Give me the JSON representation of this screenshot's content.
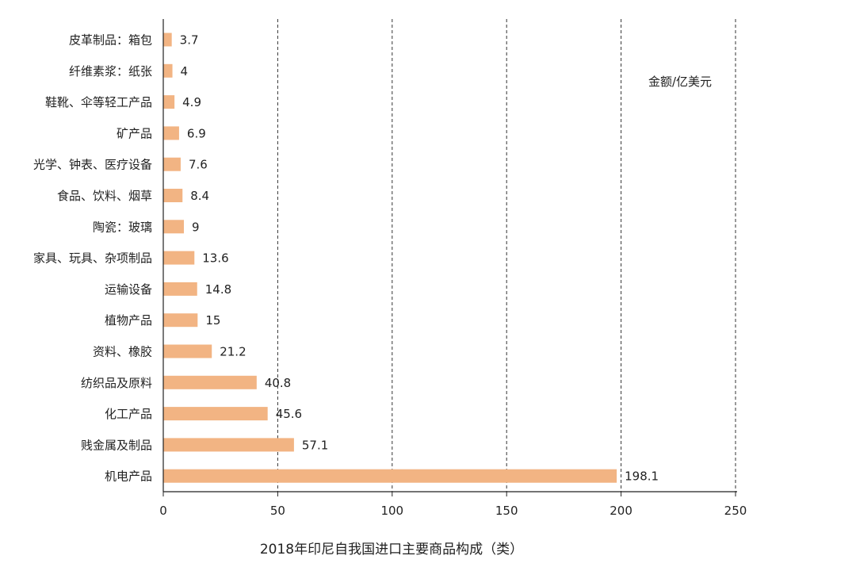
{
  "chart_data": {
    "type": "bar",
    "orientation": "horizontal",
    "title": "2018年印尼自我国进口主要商品构成（类）",
    "unit_label": "金额/亿美元",
    "categories": [
      "皮革制品：箱包",
      "纤维素浆：纸张",
      "鞋靴、伞等轻工产品",
      "矿产品",
      "光学、钟表、医疗设备",
      "食品、饮料、烟草",
      "陶瓷：玻璃",
      "家具、玩具、杂项制品",
      "运输设备",
      "植物产品",
      "资料、橡胶",
      "纺织品及原料",
      "化工产品",
      "贱金属及制品",
      "机电产品"
    ],
    "values": [
      3.7,
      4,
      4.9,
      6.9,
      7.6,
      8.4,
      9,
      13.6,
      14.8,
      15,
      21.2,
      40.8,
      45.6,
      57.1,
      198.1
    ],
    "value_labels": [
      "3.7",
      "4",
      "4.9",
      "6.9",
      "7.6",
      "8.4",
      "9",
      "13.6",
      "14.8",
      "15",
      "21.2",
      "40.8",
      "45.6",
      "57.1",
      "198.1"
    ],
    "xlim": [
      0,
      250
    ],
    "xticks": [
      0,
      50,
      100,
      150,
      200,
      250
    ],
    "xtick_labels": [
      "0",
      "50",
      "100",
      "150",
      "200",
      "250"
    ],
    "grid": "vertical dashed",
    "bar_color": "#f2b483"
  }
}
